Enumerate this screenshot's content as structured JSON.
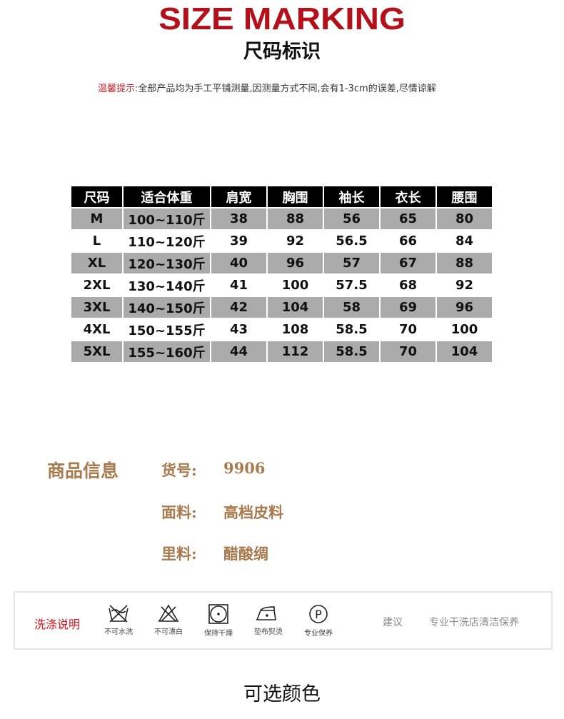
{
  "header": {
    "title": "SIZE MARKING",
    "subtitle": "尺码标识",
    "tip_label": "温馨提示:",
    "tip_text": "全部产品均为手工平铺测量,因测量方式不同,会有1-3cm的误差,尽情谅解"
  },
  "size_table": {
    "columns": [
      "尺码",
      "适合体重",
      "肩宽",
      "胸围",
      "袖长",
      "衣长",
      "腰围"
    ],
    "rows": [
      [
        "M",
        "100~110斤",
        "38",
        "88",
        "56",
        "65",
        "80"
      ],
      [
        "L",
        "110~120斤",
        "39",
        "92",
        "56.5",
        "66",
        "84"
      ],
      [
        "XL",
        "120~130斤",
        "40",
        "96",
        "57",
        "67",
        "88"
      ],
      [
        "2XL",
        "130~140斤",
        "41",
        "100",
        "57.5",
        "68",
        "92"
      ],
      [
        "3XL",
        "140~150斤",
        "42",
        "104",
        "58",
        "69",
        "96"
      ],
      [
        "4XL",
        "150~155斤",
        "43",
        "108",
        "58.5",
        "70",
        "100"
      ],
      [
        "5XL",
        "155~160斤",
        "44",
        "112",
        "58.5",
        "70",
        "104"
      ]
    ]
  },
  "product_info": {
    "heading": "商品信息",
    "item_no_label": "货号:",
    "item_no": "9906",
    "fabric_label": "面料:",
    "fabric": "高档皮料",
    "lining_label": "里料:",
    "lining": "醋酸绸"
  },
  "care": {
    "title": "洗涤说明",
    "icons": [
      {
        "icon": "no-wash-icon",
        "label": "不可水洗"
      },
      {
        "icon": "no-bleach-icon",
        "label": "不可漂白"
      },
      {
        "icon": "tumble-dry-icon",
        "label": "保持干燥"
      },
      {
        "icon": "iron-icon",
        "label": "垫布熨烫"
      },
      {
        "icon": "professional-clean-icon",
        "label": "专业保养"
      }
    ],
    "suggest_label": "建议",
    "suggest_text": "专业干洗店清洁保养"
  },
  "colors_heading": "可选颜色",
  "accent": "#b3101a"
}
